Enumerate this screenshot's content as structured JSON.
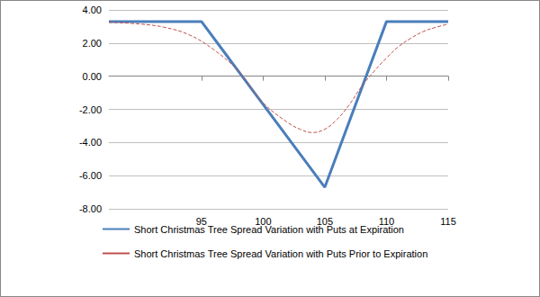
{
  "chart_data": {
    "type": "line",
    "xlim": [
      87.5,
      115
    ],
    "xticks": [
      95,
      100,
      105,
      110,
      115
    ],
    "ylim": [
      -8,
      4
    ],
    "yticks": [
      {
        "value": -8,
        "label": "-8.00"
      },
      {
        "value": -6,
        "label": "-6.00"
      },
      {
        "value": -4,
        "label": "-4.00"
      },
      {
        "value": -2,
        "label": "-2.00"
      },
      {
        "value": 0,
        "label": "0.00"
      },
      {
        "value": 2,
        "label": "2.00"
      },
      {
        "value": 4,
        "label": "4.00"
      }
    ],
    "grid": true,
    "legend": "bottom",
    "series": [
      {
        "name": "Short Christmas Tree Spread Variation with Puts at Expiration",
        "color": "#4a7ebb",
        "line_style": "solid",
        "x": [
          87.5,
          95,
          105,
          110,
          115
        ],
        "values": [
          3.3,
          3.3,
          -6.7,
          3.3,
          3.3
        ]
      },
      {
        "name": "Short Christmas Tree Spread Variation with Puts Prior to Expiration",
        "color": "#c0504d",
        "line_style": "dashed",
        "x": [
          87.5,
          90,
          92,
          94,
          96,
          98,
          100,
          102,
          103,
          104,
          105,
          106,
          107,
          108,
          109,
          110,
          111,
          112,
          113,
          114,
          115
        ],
        "values": [
          3.25,
          3.15,
          2.95,
          2.5,
          1.6,
          0.3,
          -1.6,
          -2.8,
          -3.2,
          -3.4,
          -3.2,
          -2.6,
          -1.7,
          -0.6,
          0.3,
          1.1,
          1.8,
          2.3,
          2.7,
          2.95,
          3.15
        ]
      }
    ]
  }
}
